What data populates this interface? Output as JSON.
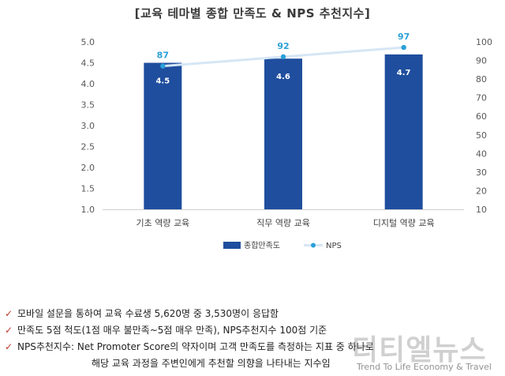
{
  "chart_data": {
    "type": "bar",
    "title": "[교육 테마별 종합 만족도 & NPS 추천지수]",
    "categories": [
      "기초 역량 교육",
      "직무 역량 교육",
      "디지털 역량 교육"
    ],
    "series": [
      {
        "name": "종합만족도",
        "type": "bar",
        "axis": "left",
        "color": "#1f4e9e",
        "values": [
          4.5,
          4.6,
          4.7
        ]
      },
      {
        "name": "NPS",
        "type": "line",
        "axis": "right",
        "color": "#2aa0d8",
        "values": [
          87,
          92,
          97
        ]
      }
    ],
    "ylim": [
      1.0,
      5.0
    ],
    "y_ticks": [
      "1.0",
      "1.5",
      "2.0",
      "2.5",
      "3.0",
      "3.5",
      "4.0",
      "4.5",
      "5.0"
    ],
    "y2lim": [
      10,
      100
    ],
    "y2_ticks": [
      "10",
      "20",
      "30",
      "40",
      "50",
      "60",
      "70",
      "80",
      "90",
      "100"
    ],
    "legend_position": "bottom",
    "grid": false
  },
  "notes": [
    "모바일 설문을 통하여 교육 수료생 5,620명 중 3,530명이 응답함",
    "만족도 5점 척도(1점 매우 불만족~5점 매우 만족), NPS추천지수 100점 기준",
    "NPS추천지수: Net Promoter Score의 약자이며 고객 만족도를 측정하는 지표 중 하나로"
  ],
  "note_continuation": "해당 교육 과정을 주변인에게 추천할 의향을  나타내는 지수임",
  "watermark": {
    "main": "티티엘뉴스",
    "sub": "Trend To Life Economy & Travel"
  }
}
